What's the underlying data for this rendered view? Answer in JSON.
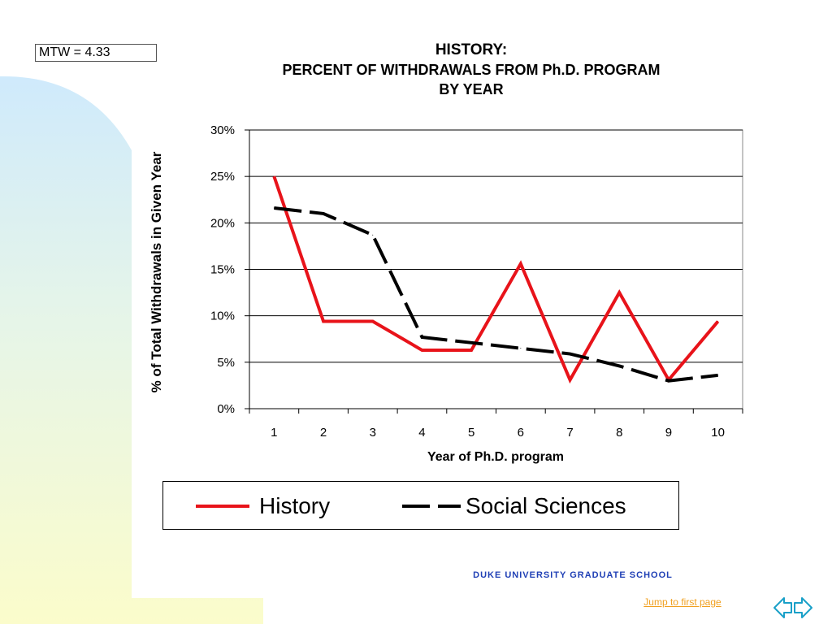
{
  "mtw_label": "MTW = 4.33",
  "chart_data": {
    "type": "line",
    "title": [
      "HISTORY:",
      "PERCENT OF WITHDRAWALS FROM Ph.D. PROGRAM",
      "BY YEAR"
    ],
    "xlabel": "Year of Ph.D. program",
    "ylabel": "% of Total Withdrawals in Given Year",
    "categories": [
      "1",
      "2",
      "3",
      "4",
      "5",
      "6",
      "7",
      "8",
      "9",
      "10"
    ],
    "yticks": [
      "0%",
      "5%",
      "10%",
      "15%",
      "20%",
      "25%",
      "30%"
    ],
    "ylim": [
      0,
      30
    ],
    "grid": true,
    "legend_position": "bottom",
    "series": [
      {
        "name": "History",
        "color": "#e8131a",
        "dash": "solid",
        "values": [
          25.0,
          9.4,
          9.4,
          6.3,
          6.3,
          15.6,
          3.1,
          12.5,
          3.1,
          9.4
        ]
      },
      {
        "name": "Social Sciences",
        "color": "#000000",
        "dash": "dashed",
        "values": [
          21.6,
          21.0,
          18.7,
          7.7,
          7.1,
          6.5,
          5.9,
          4.6,
          3.0,
          3.6
        ]
      }
    ]
  },
  "footer": {
    "org": "DUKE  UNIVERSITY  GRADUATE  SCHOOL",
    "jump_link": "Jump to first page"
  },
  "nav_icon": "prev-next-arrows-icon"
}
